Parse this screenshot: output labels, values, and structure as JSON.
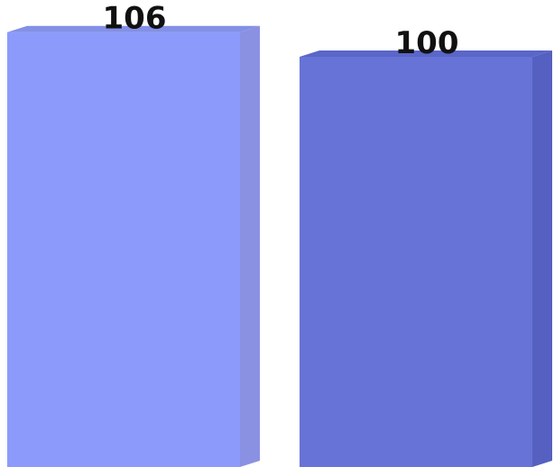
{
  "chart_data": {
    "type": "bar",
    "style": "3d",
    "categories": [
      "",
      ""
    ],
    "values": [
      106,
      100
    ],
    "data_labels": [
      "106",
      "100"
    ],
    "colors": {
      "bars": [
        "#8c9bfb",
        "#6773d6"
      ],
      "bar_sides": [
        "#8a91e3",
        "#5560c0"
      ],
      "bar_tops": [
        "#8390e6",
        "#5a66c8"
      ]
    },
    "title": "",
    "xlabel": "",
    "ylabel": "",
    "grid": false,
    "legend": "none"
  }
}
